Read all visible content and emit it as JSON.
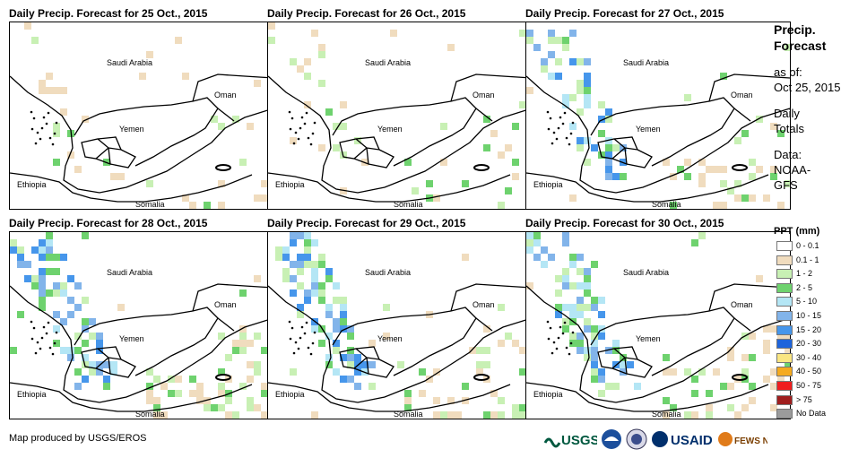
{
  "panels": [
    {
      "title": "Daily Precip. Forecast for 25 Oct., 2015"
    },
    {
      "title": "Daily Precip. Forecast for 26 Oct., 2015"
    },
    {
      "title": "Daily Precip. Forecast for 27 Oct., 2015"
    },
    {
      "title": "Daily Precip. Forecast for 28 Oct., 2015"
    },
    {
      "title": "Daily Precip. Forecast for 29 Oct., 2015"
    },
    {
      "title": "Daily Precip. Forecast for 30 Oct., 2015"
    }
  ],
  "map_labels": {
    "saudi": "Saudi Arabia",
    "oman": "Oman",
    "yemen": "Yemen",
    "ethiopia": "Ethiopia",
    "somalia": "Somalia"
  },
  "legend": {
    "title_line1": "Precip.",
    "title_line2": "Forecast",
    "asof_line1": "as of:",
    "asof_line2": "Oct 25, 2015",
    "totals_line1": "Daily",
    "totals_line2": "Totals",
    "data_line1": "Data:",
    "data_line2": "NOAA-",
    "data_line3": "GFS",
    "ppt_title": "PPT (mm)",
    "classes": [
      {
        "label": "0 - 0.1",
        "color": "#ffffff"
      },
      {
        "label": "0.1 - 1",
        "color": "#f0dcbe"
      },
      {
        "label": "1 - 2",
        "color": "#c8f0b4"
      },
      {
        "label": "2 - 5",
        "color": "#6ed26e"
      },
      {
        "label": "5 - 10",
        "color": "#b4e6f5"
      },
      {
        "label": "10 - 15",
        "color": "#82b4ea"
      },
      {
        "label": "15 - 20",
        "color": "#4696eb"
      },
      {
        "label": "20 - 30",
        "color": "#1e64dc"
      },
      {
        "label": "30 - 40",
        "color": "#fae682"
      },
      {
        "label": "40 - 50",
        "color": "#f5aa1e"
      },
      {
        "label": "50 - 75",
        "color": "#f01e1e"
      },
      {
        "label": "> 75",
        "color": "#a01e1e"
      },
      {
        "label": "No Data",
        "color": "#9b9b9b"
      }
    ]
  },
  "footer": {
    "credit": "Map produced by USGS/EROS"
  },
  "logos": {
    "usgs": "USGS",
    "usaid": "USAID",
    "fewsnet": "FEWS NET"
  }
}
